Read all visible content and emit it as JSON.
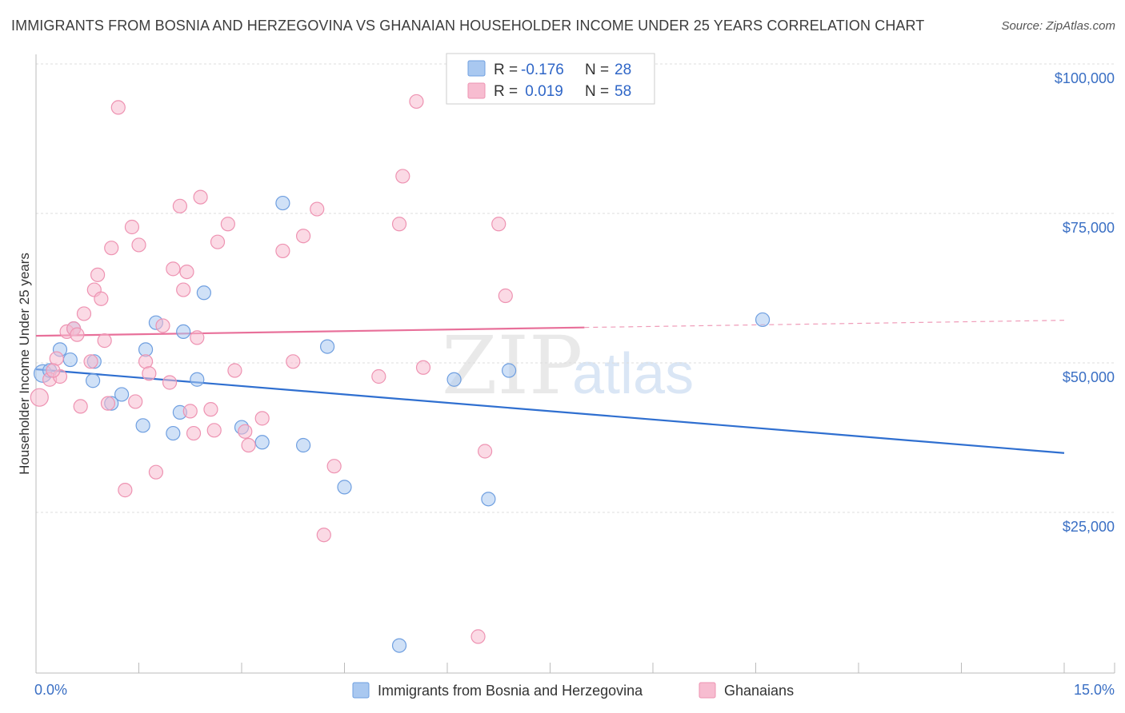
{
  "title": "IMMIGRANTS FROM BOSNIA AND HERZEGOVINA VS GHANAIAN HOUSEHOLDER INCOME UNDER 25 YEARS CORRELATION CHART",
  "source": "Source: ZipAtlas.com",
  "watermark": {
    "zip": "ZIP",
    "atlas": "atlas"
  },
  "colors": {
    "blue_fill": "#a9c8f0",
    "blue_stroke": "#6f9fe0",
    "blue_line": "#2f6fd0",
    "pink_fill": "#f7bcd0",
    "pink_stroke": "#ee93b2",
    "pink_line": "#e8709a",
    "label_blue": "#3a6fc4"
  },
  "legend": {
    "rows": [
      {
        "r_label": "R =",
        "r_value": "-0.176",
        "n_label": "N =",
        "n_value": "28",
        "color": "blue"
      },
      {
        "r_label": "R =",
        "r_value": " 0.019",
        "n_label": "N =",
        "n_value": "58",
        "color": "pink"
      }
    ]
  },
  "chart_data": {
    "type": "scatter",
    "xlabel": "",
    "ylabel": "Householder Income Under 25 years",
    "xlim": [
      0,
      15
    ],
    "ylim": [
      0,
      105000
    ],
    "x_tick_labels": [
      "0.0%",
      "15.0%"
    ],
    "y_ticks": [
      25000,
      50000,
      75000,
      100000
    ],
    "y_tick_labels": [
      "$25,000",
      "$50,000",
      "$75,000",
      "$100,000"
    ],
    "grid": true,
    "legend_position": "top-center",
    "series": [
      {
        "name": "Immigrants from Bosnia and Herzegovina",
        "color": "blue",
        "points": [
          [
            0.1,
            50500
          ],
          [
            0.2,
            51000
          ],
          [
            0.35,
            54500
          ],
          [
            0.55,
            58000
          ],
          [
            0.85,
            52500
          ],
          [
            1.1,
            45500
          ],
          [
            1.25,
            47000
          ],
          [
            1.6,
            54500
          ],
          [
            1.75,
            59000
          ],
          [
            2.0,
            40500
          ],
          [
            2.1,
            44000
          ],
          [
            2.15,
            57500
          ],
          [
            2.35,
            49500
          ],
          [
            2.45,
            64000
          ],
          [
            3.0,
            41500
          ],
          [
            3.3,
            39000
          ],
          [
            3.6,
            79000
          ],
          [
            3.9,
            38500
          ],
          [
            4.25,
            55000
          ],
          [
            4.5,
            31500
          ],
          [
            5.3,
            5000
          ],
          [
            6.1,
            49500
          ],
          [
            6.6,
            29500
          ],
          [
            6.9,
            51000
          ],
          [
            10.6,
            59500
          ],
          [
            0.5,
            52800
          ],
          [
            0.83,
            49300
          ],
          [
            1.56,
            41800
          ]
        ],
        "trend": {
          "x": [
            0.0,
            15.0
          ],
          "y": [
            51200,
            37200
          ]
        }
      },
      {
        "name": "Ghanaians",
        "color": "pink",
        "points": [
          [
            0.05,
            46500
          ],
          [
            0.2,
            49500
          ],
          [
            0.3,
            53000
          ],
          [
            0.35,
            50000
          ],
          [
            0.45,
            57500
          ],
          [
            0.55,
            58000
          ],
          [
            0.65,
            45000
          ],
          [
            0.7,
            60500
          ],
          [
            0.8,
            52500
          ],
          [
            0.85,
            64500
          ],
          [
            0.9,
            67000
          ],
          [
            0.95,
            63000
          ],
          [
            1.0,
            56000
          ],
          [
            1.05,
            45500
          ],
          [
            1.1,
            71500
          ],
          [
            1.2,
            95000
          ],
          [
            1.3,
            31000
          ],
          [
            1.4,
            75000
          ],
          [
            1.5,
            72000
          ],
          [
            1.6,
            52500
          ],
          [
            1.65,
            50500
          ],
          [
            1.75,
            34000
          ],
          [
            1.85,
            58500
          ],
          [
            1.95,
            49000
          ],
          [
            2.0,
            68000
          ],
          [
            2.1,
            78500
          ],
          [
            2.15,
            64500
          ],
          [
            2.2,
            67500
          ],
          [
            2.3,
            40500
          ],
          [
            2.35,
            56500
          ],
          [
            2.4,
            80000
          ],
          [
            2.55,
            44500
          ],
          [
            2.6,
            41000
          ],
          [
            2.65,
            72500
          ],
          [
            2.8,
            75500
          ],
          [
            2.9,
            51000
          ],
          [
            3.1,
            38500
          ],
          [
            3.3,
            43000
          ],
          [
            3.6,
            71000
          ],
          [
            3.75,
            52500
          ],
          [
            3.9,
            73500
          ],
          [
            4.1,
            78000
          ],
          [
            4.2,
            23500
          ],
          [
            4.35,
            35000
          ],
          [
            5.0,
            50000
          ],
          [
            5.3,
            75500
          ],
          [
            5.35,
            83500
          ],
          [
            5.55,
            96000
          ],
          [
            5.65,
            51500
          ],
          [
            6.45,
            6500
          ],
          [
            6.55,
            37500
          ],
          [
            6.75,
            75500
          ],
          [
            6.85,
            63500
          ],
          [
            0.25,
            51000
          ],
          [
            0.6,
            57000
          ],
          [
            1.45,
            45800
          ],
          [
            2.25,
            44200
          ],
          [
            3.05,
            40800
          ]
        ],
        "trend": {
          "x": [
            0.0,
            8.0
          ],
          "y": [
            56800,
            58200
          ]
        },
        "trend_dashed": {
          "x": [
            8.0,
            15.0
          ],
          "y": [
            58200,
            59400
          ]
        }
      }
    ]
  },
  "bottom_legend": [
    {
      "label": "Immigrants from Bosnia and Herzegovina",
      "color": "blue"
    },
    {
      "label": "Ghanaians",
      "color": "pink"
    }
  ]
}
